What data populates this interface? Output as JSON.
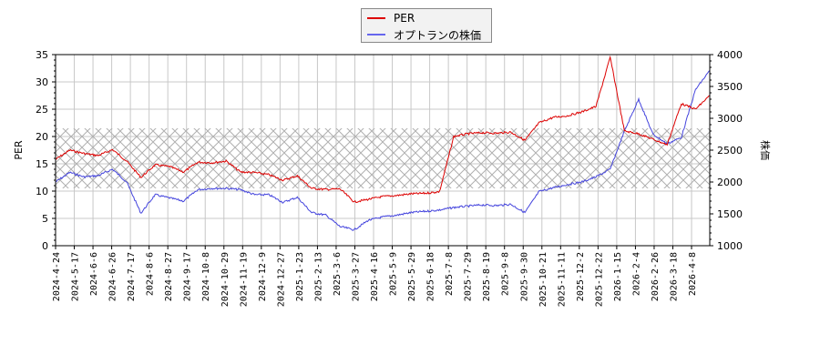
{
  "chart_data": {
    "type": "line",
    "title": "",
    "legend": {
      "position": "top-center",
      "entries": [
        {
          "label": "PER",
          "color": "#dd0000"
        },
        {
          "label": "オプトランの株価",
          "color": "#4444dd"
        }
      ]
    },
    "xlabel": "",
    "ylabel_left": "PER",
    "ylabel_right": "株価",
    "ylim_left": [
      0,
      35
    ],
    "ylim_right": [
      1000,
      4000
    ],
    "yticks_left": [
      0,
      5,
      10,
      15,
      20,
      25,
      30,
      35
    ],
    "yticks_right": [
      1000,
      1500,
      2000,
      2500,
      3000,
      3500,
      4000
    ],
    "grid": true,
    "hatched_band_per": [
      10.5,
      21.5
    ],
    "x_tick_labels": [
      "2024-4-24",
      "2024-5-17",
      "2024-6-6",
      "2024-6-26",
      "2024-7-17",
      "2024-8-6",
      "2024-8-27",
      "2024-9-17",
      "2024-10-8",
      "2024-10-29",
      "2024-11-19",
      "2024-12-9",
      "2024-12-27",
      "2025-1-23",
      "2025-2-13",
      "2025-3-6",
      "2025-3-27",
      "2025-4-16",
      "2025-5-9",
      "2025-5-29",
      "2025-6-18",
      "2025-7-8",
      "2025-7-29",
      "2025-8-19",
      "2025-9-8",
      "2025-9-30",
      "2025-10-21",
      "2025-11-11",
      "2025-12-2",
      "2025-12-22",
      "2026-1-15",
      "2026-2-4",
      "2026-2-26",
      "2026-3-18",
      "2026-4-8"
    ],
    "series": [
      {
        "name": "PER",
        "axis": "left",
        "color": "#dd0000",
        "values": [
          15.8,
          17.5,
          16.9,
          16.5,
          17.6,
          15.5,
          12.5,
          14.8,
          14.5,
          13.5,
          15.3,
          15.2,
          15.5,
          13.5,
          13.4,
          13.0,
          12.0,
          12.8,
          10.5,
          10.3,
          10.4,
          8.0,
          8.5,
          9.0,
          9.2,
          9.5,
          9.6,
          9.9,
          20.0,
          20.5,
          20.7,
          20.6,
          20.8,
          19.3,
          22.5,
          23.5,
          23.8,
          24.5,
          25.5,
          34.5,
          21.0,
          20.5,
          19.5,
          18.5,
          26.0,
          25.0,
          27.5
        ]
      },
      {
        "name": "オプトランの株価",
        "axis": "right",
        "color": "#4444dd",
        "values": [
          2000,
          2150,
          2080,
          2100,
          2200,
          2000,
          1510,
          1800,
          1750,
          1700,
          1880,
          1900,
          1900,
          1880,
          1800,
          1800,
          1680,
          1760,
          1520,
          1480,
          1300,
          1250,
          1400,
          1450,
          1480,
          1520,
          1540,
          1560,
          1600,
          1620,
          1640,
          1630,
          1650,
          1520,
          1850,
          1910,
          1960,
          2000,
          2080,
          2200,
          2800,
          3300,
          2750,
          2600,
          2700,
          3450,
          3750
        ]
      }
    ]
  }
}
